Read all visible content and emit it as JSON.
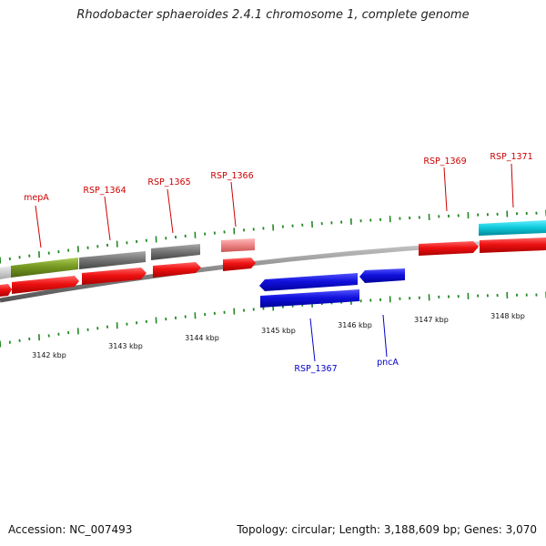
{
  "header": {
    "title": "Rhodobacter sphaeroides 2.4.1 chromosome 1, complete genome"
  },
  "footer": {
    "accession": "Accession: NC_007493",
    "stats": "Topology: circular; Length: 3,188,609 bp; Genes: 3,070"
  },
  "colors": {
    "cds": "#ee1111",
    "cds_reverse": "#1111dd",
    "gray_feature": "#777777",
    "olive_feature": "#779922",
    "pink_feature": "#ee8888",
    "cyan_feature": "#11ccdd",
    "tick": "#228822",
    "backbone": "#888888"
  },
  "scale": {
    "labels": [
      "3142 kbp",
      "3143 kbp",
      "3144 kbp",
      "3145 kbp",
      "3146 kbp",
      "3147 kbp",
      "3148 kbp"
    ]
  },
  "genes": {
    "top_labels": [
      "mepA",
      "RSP_1364",
      "RSP_1365",
      "RSP_1366",
      "RSP_1369",
      "RSP_1371"
    ],
    "bottom_labels": [
      "RSP_1367",
      "pncA"
    ]
  }
}
